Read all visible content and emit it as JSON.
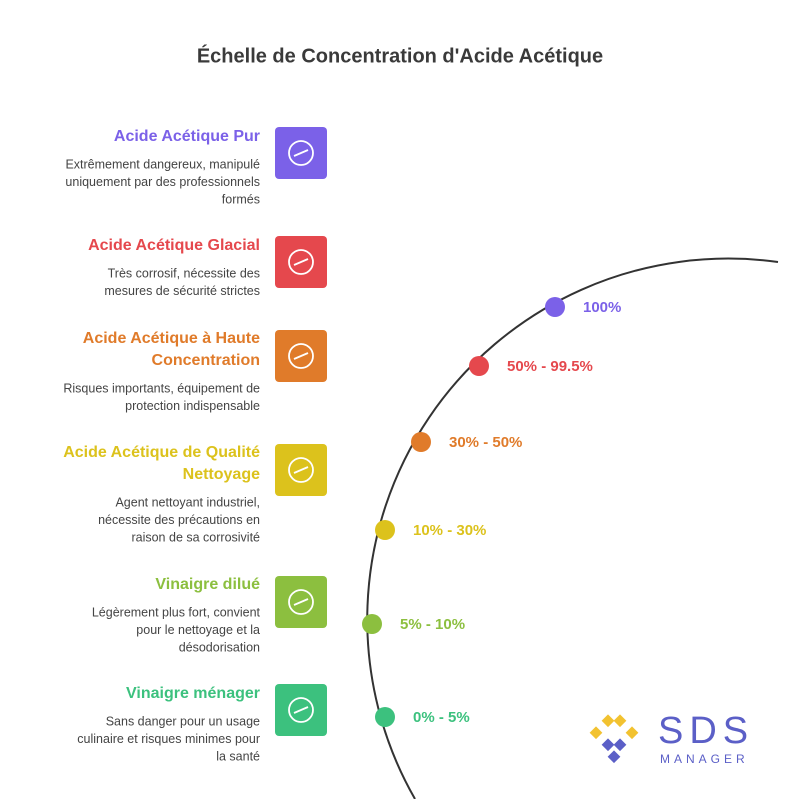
{
  "title": "Échelle de Concentration d'Acide Acétique",
  "items": [
    {
      "title": [
        "Acide Acétique Pur"
      ],
      "description": [
        "Extrêmement dangereux, manipulé",
        "uniquement par des professionnels",
        "formés"
      ],
      "range": "100%",
      "color": "#7b61e8"
    },
    {
      "title": [
        "Acide Acétique Glacial"
      ],
      "description": [
        "Très corrosif, nécessite des",
        "mesures de sécurité strictes"
      ],
      "range": "50% - 99.5%",
      "color": "#e5484d"
    },
    {
      "title": [
        "Acide Acétique à Haute",
        "Concentration"
      ],
      "description": [
        "Risques importants, équipement de",
        "protection indispensable"
      ],
      "range": "30% - 50%",
      "color": "#e07b2a"
    },
    {
      "title": [
        "Acide Acétique de Qualité",
        "Nettoyage"
      ],
      "description": [
        "Agent nettoyant industriel,",
        "nécessite des précautions en",
        "raison de sa corrosivité"
      ],
      "range": "10% - 30%",
      "color": "#dcc21c"
    },
    {
      "title": [
        "Vinaigre dilué"
      ],
      "description": [
        "Légèrement plus fort, convient",
        "pour le nettoyage et la",
        "désodorisation"
      ],
      "range": "5% - 10%",
      "color": "#8cbf3f"
    },
    {
      "title": [
        "Vinaigre ménager"
      ],
      "description": [
        "Sans danger pour un usage",
        "culinaire et risques minimes pour",
        "la santé"
      ],
      "range": "0% - 5%",
      "color": "#3cc17e"
    }
  ],
  "logo": {
    "name": "SDS",
    "subtitle": "MANAGER"
  }
}
